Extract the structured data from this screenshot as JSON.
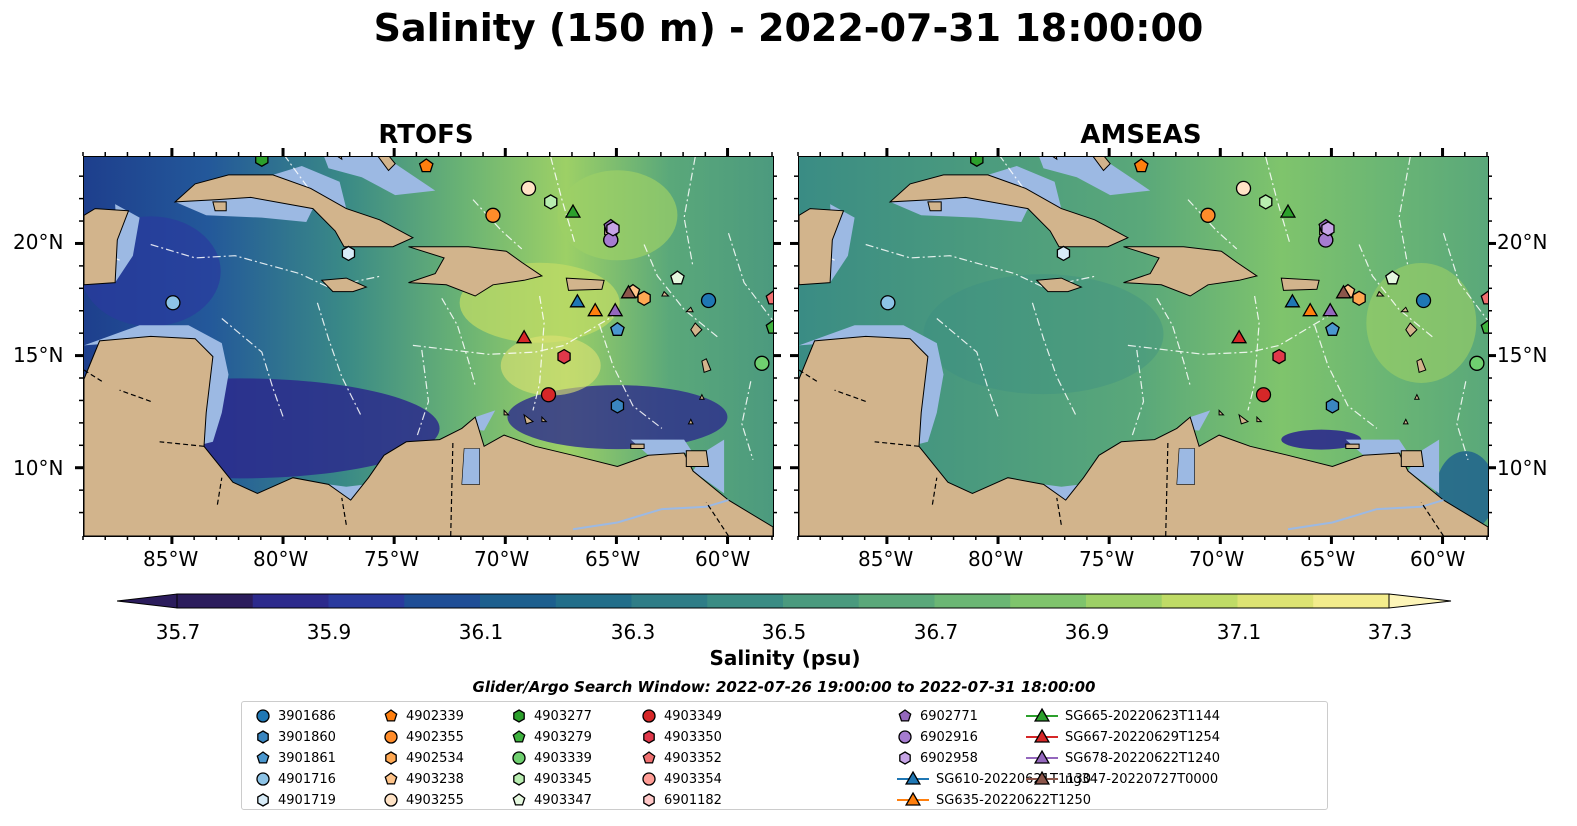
{
  "title": "Salinity (150 m) - 2022-07-31 18:00:00",
  "panels": [
    {
      "title": "RTOFS",
      "style": "rtofs"
    },
    {
      "title": "AMSEAS",
      "style": "amseas"
    }
  ],
  "axes": {
    "lon_labels": [
      "85°W",
      "80°W",
      "75°W",
      "70°W",
      "65°W",
      "60°W"
    ],
    "lat_labels": [
      "20°N",
      "15°N",
      "10°N"
    ]
  },
  "colorbar": {
    "label": "Salinity (psu)",
    "ticks": [
      "35.7",
      "35.9",
      "36.1",
      "36.3",
      "36.5",
      "36.7",
      "36.9",
      "37.1",
      "37.3"
    ],
    "colors": [
      "#2b1c5c",
      "#2c2a8c",
      "#2a3a9e",
      "#1f4e96",
      "#1d5f8e",
      "#226e8a",
      "#2f7d87",
      "#3a8c84",
      "#4a9a7e",
      "#5aa87a",
      "#6bb674",
      "#7fc46c",
      "#9dd066",
      "#bfdb66",
      "#dde373",
      "#f3ec8c"
    ],
    "extend_low_color": "#2b1c5c",
    "extend_high_color": "#fdf5b8"
  },
  "search_window": "Glider/Argo Search Window: 2022-07-26 19:00:00 to 2022-07-31 18:00:00",
  "legend": [
    {
      "label": "3901686",
      "marker": "circle",
      "color": "#1f77b4"
    },
    {
      "label": "3901860",
      "marker": "hexagon",
      "color": "#3a86c0"
    },
    {
      "label": "3901861",
      "marker": "pentagon",
      "color": "#4a97cf"
    },
    {
      "label": "4901716",
      "marker": "circle",
      "color": "#8dc3e6"
    },
    {
      "label": "4901719",
      "marker": "hexagon",
      "color": "#d8ecf8"
    },
    {
      "label": "4902339",
      "marker": "pentagon",
      "color": "#ff7f0e"
    },
    {
      "label": "4902355",
      "marker": "circle",
      "color": "#ff8c2a"
    },
    {
      "label": "4902534",
      "marker": "hexagon",
      "color": "#ffa852"
    },
    {
      "label": "4903238",
      "marker": "pentagon",
      "color": "#ffc48a"
    },
    {
      "label": "4903255",
      "marker": "circle",
      "color": "#ffe3c6"
    },
    {
      "label": "4903277",
      "marker": "hexagon",
      "color": "#2ca02c"
    },
    {
      "label": "4903279",
      "marker": "pentagon",
      "color": "#3fb23f"
    },
    {
      "label": "4903339",
      "marker": "circle",
      "color": "#6fcf6f"
    },
    {
      "label": "4903345",
      "marker": "hexagon",
      "color": "#b8edb0"
    },
    {
      "label": "4903347",
      "marker": "pentagon",
      "color": "#e5f8df"
    },
    {
      "label": "4903349",
      "marker": "circle",
      "color": "#d62728"
    },
    {
      "label": "4903350",
      "marker": "hexagon",
      "color": "#e0384a"
    },
    {
      "label": "4903352",
      "marker": "pentagon",
      "color": "#f07070"
    },
    {
      "label": "4903354",
      "marker": "circle",
      "color": "#ff9d96"
    },
    {
      "label": "6901182",
      "marker": "hexagon",
      "color": "#ffc8c8"
    },
    {
      "label": "6902771",
      "marker": "pentagon",
      "color": "#9467bd"
    },
    {
      "label": "6902916",
      "marker": "circle",
      "color": "#a67cd0"
    },
    {
      "label": "6902958",
      "marker": "hexagon",
      "color": "#c6a4e6"
    },
    {
      "label": "SG610-20220621T1130",
      "marker": "triangle-line",
      "color": "#1f77b4"
    },
    {
      "label": "SG635-20220622T1250",
      "marker": "triangle-line",
      "color": "#ff7f0e"
    },
    {
      "label": "SG665-20220623T1144",
      "marker": "triangle-line",
      "color": "#2ca02c"
    },
    {
      "label": "SG667-20220629T1254",
      "marker": "triangle-line",
      "color": "#d62728"
    },
    {
      "label": "SG678-20220622T1240",
      "marker": "triangle-line",
      "color": "#9467bd"
    },
    {
      "label": "ng347-20220727T0000",
      "marker": "triangle-line",
      "color": "#8c564b"
    }
  ],
  "observations": [
    {
      "id": "3901686",
      "lon": -60.9,
      "lat": 17.5
    },
    {
      "id": "3901860",
      "lon": -65.0,
      "lat": 12.8
    },
    {
      "id": "3901861",
      "lon": -65.0,
      "lat": 16.2
    },
    {
      "id": "4901716",
      "lon": -85.0,
      "lat": 17.4
    },
    {
      "id": "4901719",
      "lon": -77.1,
      "lat": 19.6
    },
    {
      "id": "4902339",
      "lon": -73.6,
      "lat": 23.5
    },
    {
      "id": "4902355",
      "lon": -70.6,
      "lat": 21.3
    },
    {
      "id": "4902534",
      "lon": -63.8,
      "lat": 17.6
    },
    {
      "id": "4903238",
      "lon": -64.3,
      "lat": 17.9
    },
    {
      "id": "4903255",
      "lon": -69.0,
      "lat": 22.5
    },
    {
      "id": "4903277",
      "lon": -81.0,
      "lat": 23.8
    },
    {
      "id": "4903279",
      "lon": -58.0,
      "lat": 16.3
    },
    {
      "id": "4903339",
      "lon": -58.5,
      "lat": 14.7
    },
    {
      "id": "4903345",
      "lon": -68.0,
      "lat": 21.9
    },
    {
      "id": "4903347",
      "lon": -62.3,
      "lat": 18.5
    },
    {
      "id": "4903349",
      "lon": -68.1,
      "lat": 13.3
    },
    {
      "id": "4903350",
      "lon": -67.4,
      "lat": 15.0
    },
    {
      "id": "4903352",
      "lon": -58.0,
      "lat": 17.6
    },
    {
      "id": "4903354",
      "lon": -65.3,
      "lat": 20.2
    },
    {
      "id": "6901182",
      "lon": -65.3,
      "lat": 20.6
    },
    {
      "id": "6902771",
      "lon": -65.3,
      "lat": 20.8
    },
    {
      "id": "6902916",
      "lon": -65.3,
      "lat": 20.2
    },
    {
      "id": "6902958",
      "lon": -65.2,
      "lat": 20.7
    },
    {
      "id": "SG610-20220621T1130",
      "lon": -66.8,
      "lat": 17.4
    },
    {
      "id": "SG635-20220622T1250",
      "lon": -66.0,
      "lat": 17.0
    },
    {
      "id": "SG665-20220623T1144",
      "lon": -67.0,
      "lat": 21.4
    },
    {
      "id": "SG667-20220629T1254",
      "lon": -69.2,
      "lat": 15.8
    },
    {
      "id": "SG678-20220622T1240",
      "lon": -65.1,
      "lat": 17.0
    },
    {
      "id": "ng347-20220727T0000",
      "lon": -64.5,
      "lat": 17.8
    }
  ]
}
